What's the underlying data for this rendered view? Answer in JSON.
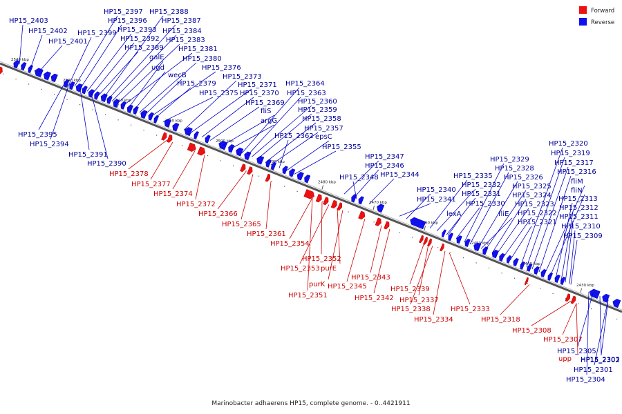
{
  "caption": "Marinobacter adhaerens HP15, complete genome. - 0..4421911",
  "legend": [
    {
      "label": "Forward",
      "color": "#ee1111"
    },
    {
      "label": "Reverse",
      "color": "#1111ee"
    }
  ],
  "colors": {
    "forward": "#ee1111",
    "reverse": "#1111ee",
    "forward_text": "#cc0000",
    "reverse_text": "#000099",
    "backbone": "#888888"
  },
  "ticks": [
    "2540 kbp",
    "2530 kbp",
    "2520 kbp",
    "2510 kbp",
    "2500 kbp",
    "2490 kbp",
    "2480 kbp",
    "2470 kbp",
    "2460 kbp",
    "2450 kbp",
    "2440 kbp",
    "2430 kbp"
  ],
  "reverse_labels": [
    "HP15_2403",
    "HP15_2402",
    "HP15_2401",
    "HP15_2399",
    "HP15_2397",
    "HP15_2396",
    "HP15_2393",
    "HP15_2392",
    "HP15_2389",
    "HP15_2388",
    "HP15_2387",
    "HP15_2384",
    "HP15_2383",
    "HP15_2381",
    "galE",
    "ugd",
    "HP15_2380",
    "wecB",
    "HP15_2376",
    "HP15_2379",
    "HP15_2375",
    "HP15_2373",
    "HP15_2371",
    "HP15_2370",
    "HP15_2369",
    "fliS",
    "argG",
    "HP15_2364",
    "HP15_2363",
    "HP15_2360",
    "HP15_2359",
    "HP15_2358",
    "HP15_2357",
    "HP15_2362",
    "epsC",
    "HP15_2355",
    "HP15_2395",
    "HP15_2394",
    "HP15_2391",
    "HP15_2390",
    "HP15_2347",
    "HP15_2346",
    "HP15_2348",
    "HP15_2344",
    "HP15_2340",
    "HP15_2341",
    "HP15_2335",
    "HP15_2332",
    "HP15_2331",
    "HP15_2330",
    "lexA",
    "HP15_2329",
    "HP15_2328",
    "HP15_2326",
    "HP15_2325",
    "HP15_2324",
    "HP15_2323",
    "fliE",
    "HP15_2322",
    "HP15_2321",
    "HP15_2320",
    "HP15_2319",
    "HP15_2317",
    "HP15_2316",
    "fliM",
    "fliN",
    "HP15_2313",
    "HP15_2312",
    "HP15_2311",
    "HP15_2310",
    "HP15_2309",
    "HP15_2305",
    "HP15_2302",
    "HP15_2301",
    "HP15_2303",
    "HP15_2304"
  ],
  "forward_labels": [
    "HP15_2378",
    "HP15_2377",
    "HP15_2374",
    "HP15_2372",
    "HP15_2366",
    "HP15_2365",
    "HP15_2361",
    "HP15_2354",
    "HP15_2352",
    "HP15_2353",
    "purE",
    "purK",
    "HP15_2345",
    "HP15_2351",
    "HP15_2343",
    "HP15_2342",
    "HP15_2339",
    "HP15_2337",
    "HP15_2338",
    "HP15_2334",
    "HP15_2333",
    "HP15_2318",
    "HP15_2308",
    "HP15_2307",
    "upp"
  ]
}
